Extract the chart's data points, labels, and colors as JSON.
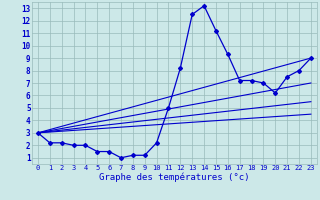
{
  "xlabel": "Graphe des températures (°c)",
  "bg_color": "#cce8e8",
  "grid_color": "#99bbbb",
  "line_color": "#0000cc",
  "xlim": [
    -0.5,
    23.5
  ],
  "ylim": [
    0.5,
    13.5
  ],
  "xticks": [
    0,
    1,
    2,
    3,
    4,
    5,
    6,
    7,
    8,
    9,
    10,
    11,
    12,
    13,
    14,
    15,
    16,
    17,
    18,
    19,
    20,
    21,
    22,
    23
  ],
  "yticks": [
    1,
    2,
    3,
    4,
    5,
    6,
    7,
    8,
    9,
    10,
    11,
    12,
    13
  ],
  "main_x": [
    0,
    1,
    2,
    3,
    4,
    5,
    6,
    7,
    8,
    9,
    10,
    11,
    12,
    13,
    14,
    15,
    16,
    17,
    18,
    19,
    20,
    21,
    22,
    23
  ],
  "main_y": [
    3.0,
    2.2,
    2.2,
    2.0,
    2.0,
    1.5,
    1.5,
    1.0,
    1.2,
    1.2,
    2.2,
    5.0,
    8.2,
    12.5,
    13.2,
    11.2,
    9.3,
    7.2,
    7.2,
    7.0,
    6.2,
    7.5,
    8.0,
    9.0
  ],
  "line1_x": [
    0,
    23
  ],
  "line1_y": [
    3.0,
    9.0
  ],
  "line2_x": [
    0,
    23
  ],
  "line2_y": [
    3.0,
    7.0
  ],
  "line3_x": [
    0,
    23
  ],
  "line3_y": [
    3.0,
    5.5
  ],
  "line4_x": [
    0,
    23
  ],
  "line4_y": [
    3.0,
    4.5
  ]
}
